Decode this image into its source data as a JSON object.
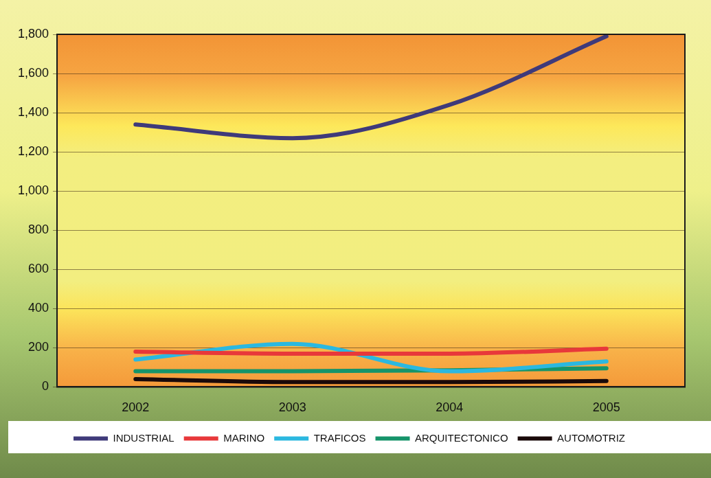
{
  "chart_data": {
    "type": "line",
    "categories": [
      "2002",
      "2003",
      "2004",
      "2005"
    ],
    "series": [
      {
        "name": "INDUSTRIAL",
        "color": "#3f3a7a",
        "values": [
          1340,
          1270,
          1440,
          1790
        ]
      },
      {
        "name": "MARINO",
        "color": "#e8383a",
        "values": [
          180,
          170,
          170,
          195
        ]
      },
      {
        "name": "TRAFICOS",
        "color": "#2bb8e0",
        "values": [
          140,
          220,
          80,
          130
        ]
      },
      {
        "name": "ARQUITECTONICO",
        "color": "#16946a",
        "values": [
          80,
          80,
          85,
          95
        ]
      },
      {
        "name": "AUTOMOTRIZ",
        "color": "#1a0a0a",
        "values": [
          40,
          25,
          25,
          30
        ]
      }
    ],
    "ylim": [
      0,
      1800
    ],
    "yticks": [
      0,
      200,
      400,
      600,
      800,
      {
        "value": 1000,
        "label": "1,000"
      },
      {
        "value": 1200,
        "label": "1,200"
      },
      {
        "value": 1400,
        "label": "1,400"
      },
      {
        "value": 1600,
        "label": "1,600"
      },
      {
        "value": 1800,
        "label": "1,800"
      }
    ],
    "grid": "y",
    "legend": "bottom",
    "marker": "none",
    "line_style": "solid"
  }
}
